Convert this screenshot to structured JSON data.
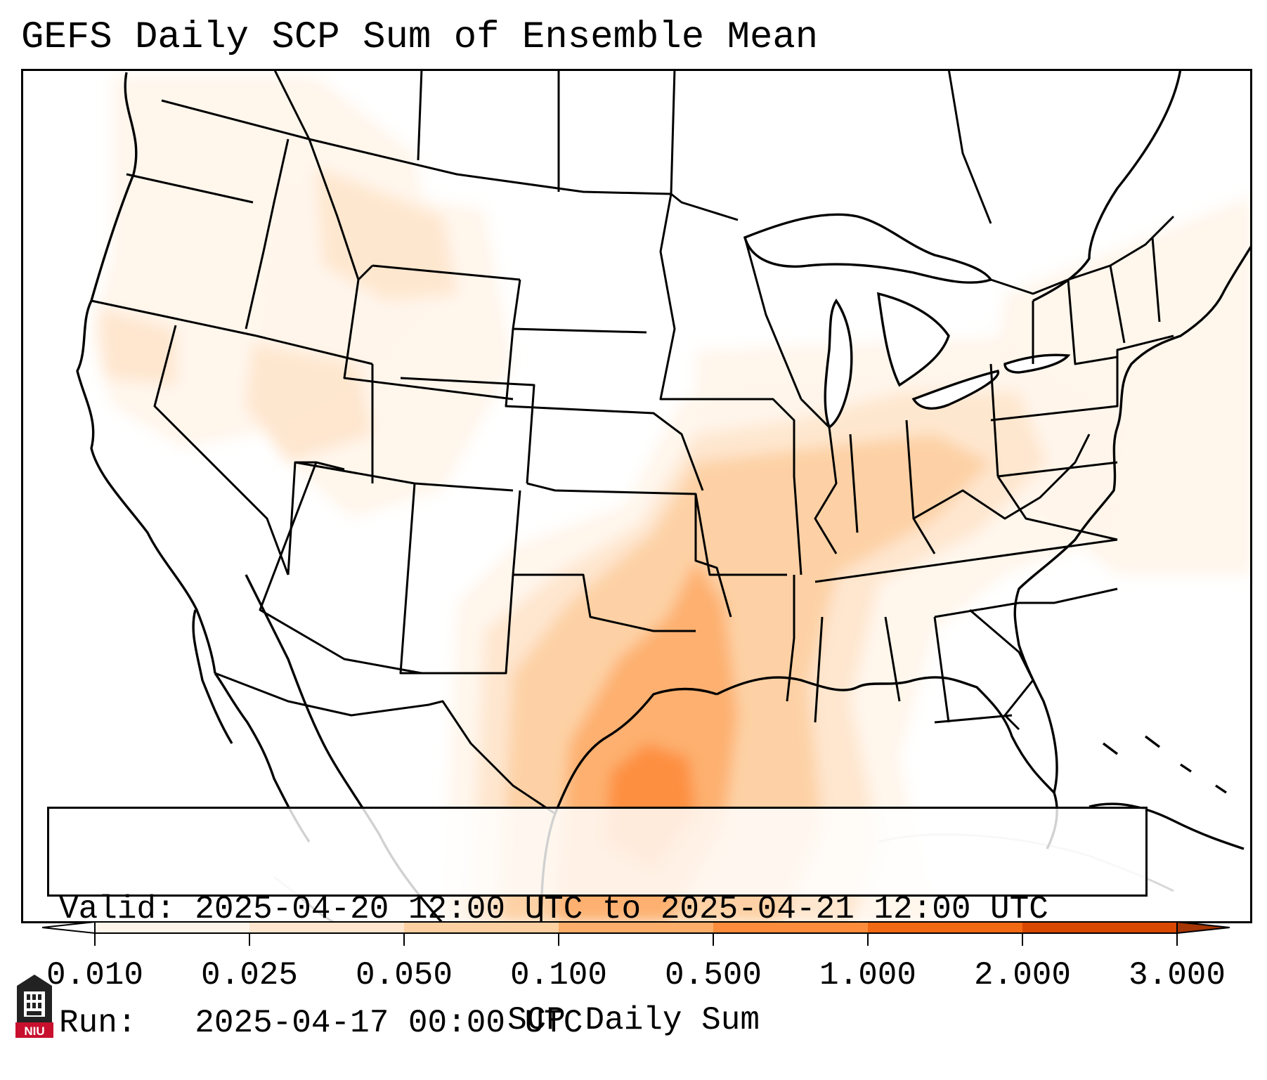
{
  "title": "GEFS Daily SCP Sum of Ensemble Mean",
  "info": {
    "valid_label": "Valid:",
    "valid_value": "2025-04-20 12:00 UTC to 2025-04-21 12:00 UTC",
    "run_label": "Run:",
    "run_value": "2025-04-17 00:00 UTC"
  },
  "colorbar": {
    "label": "SCP Daily Sum",
    "ticks": [
      "0.010",
      "0.025",
      "0.050",
      "0.100",
      "0.500",
      "1.000",
      "2.000",
      "3.000"
    ],
    "colors": [
      "#fff5eb",
      "#fee6ce",
      "#fdd0a2",
      "#fdae6b",
      "#fd8d3c",
      "#f16913",
      "#d94801"
    ],
    "extend_min_color": "#ffffff",
    "extend_max_color": "#a63603"
  },
  "logo": {
    "text": "NIU",
    "color": "#c8102e"
  },
  "map": {
    "region": "Contiguous United States",
    "field": "GEFS ensemble mean SCP daily sum",
    "highest_region": "Texas Gulf coast"
  }
}
